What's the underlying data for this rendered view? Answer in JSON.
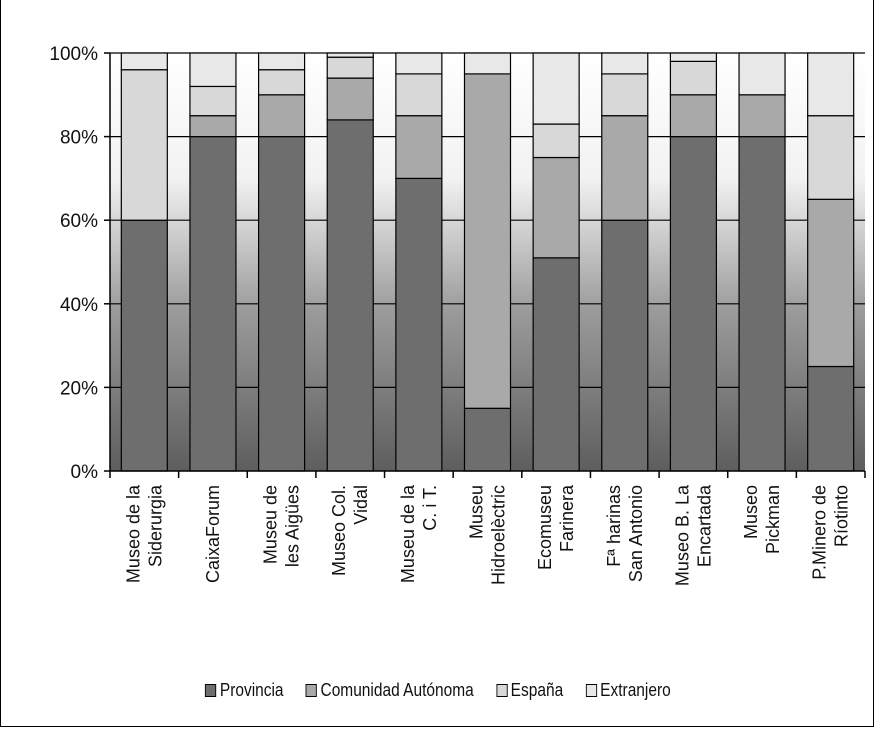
{
  "chart_data": {
    "type": "bar",
    "stacked": true,
    "categories": [
      "Museo de la\nSiderurgia",
      "CaixaForum",
      "Museu de\nles Aigües",
      "Museo Col.\nVidal",
      "Museu de la\nC. i T.",
      "Museu\nHidroelèctric",
      "Ecomuseu\nFarinera",
      "Fª harinas\nSan Antonio",
      "Museo B. La\nEncartada",
      "Museo\nPickman",
      "P.Minero de\nRíotinto"
    ],
    "series": [
      {
        "name": "Provincia",
        "color": "#6e6e6e",
        "values": [
          60,
          80,
          80,
          84,
          70,
          15,
          51,
          60,
          80,
          80,
          25
        ]
      },
      {
        "name": "Comunidad Autónoma",
        "color": "#a9a9a9",
        "values": [
          0,
          5,
          10,
          10,
          15,
          80,
          24,
          25,
          10,
          10,
          40
        ]
      },
      {
        "name": "España",
        "color": "#d8d8d8",
        "values": [
          36,
          7,
          6,
          5,
          10,
          0,
          8,
          10,
          8,
          0,
          20
        ]
      },
      {
        "name": "Extranjero",
        "color": "#e8e8e8",
        "values": [
          4,
          8,
          4,
          1,
          5,
          5,
          17,
          5,
          2,
          10,
          15
        ]
      }
    ],
    "yticks": [
      "0%",
      "20%",
      "40%",
      "60%",
      "80%",
      "100%"
    ],
    "ylim": [
      0,
      100
    ],
    "legend_position": "bottom",
    "grid": true
  }
}
